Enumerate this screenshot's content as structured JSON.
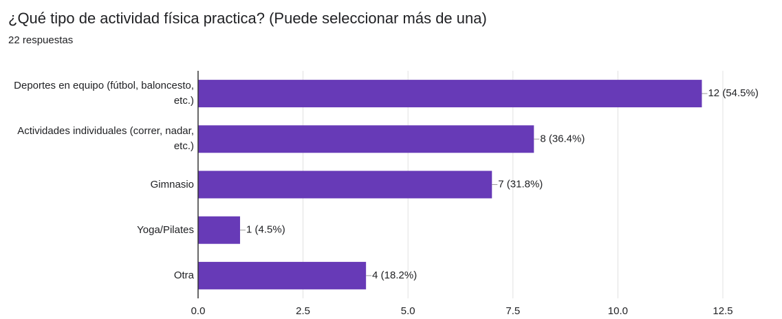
{
  "chart_data": {
    "type": "bar",
    "orientation": "horizontal",
    "title": "¿Qué tipo de actividad física practica? (Puede seleccionar más de una)",
    "subtitle": "22 respuestas",
    "categories": [
      "Deportes en equipo (fútbol, baloncesto, etc.)",
      "Actividades individuales (correr, nadar, etc.)",
      "Gimnasio",
      "Yoga/Pilates",
      "Otra"
    ],
    "values": [
      12,
      8,
      7,
      1,
      4
    ],
    "value_labels": [
      "12 (54.5%)",
      "8 (36.4%)",
      "7 (31.8%)",
      "1 (4.5%)",
      "4 (18.2%)"
    ],
    "color": "#673ab7",
    "xlim": [
      0,
      12.5
    ],
    "xticks": [
      {
        "value": 0,
        "label": "0.0"
      },
      2.5,
      {
        "value": 5,
        "label": "5.0"
      },
      7.5,
      {
        "value": 10,
        "label": "10.0"
      },
      12.5
    ],
    "grid": true
  }
}
